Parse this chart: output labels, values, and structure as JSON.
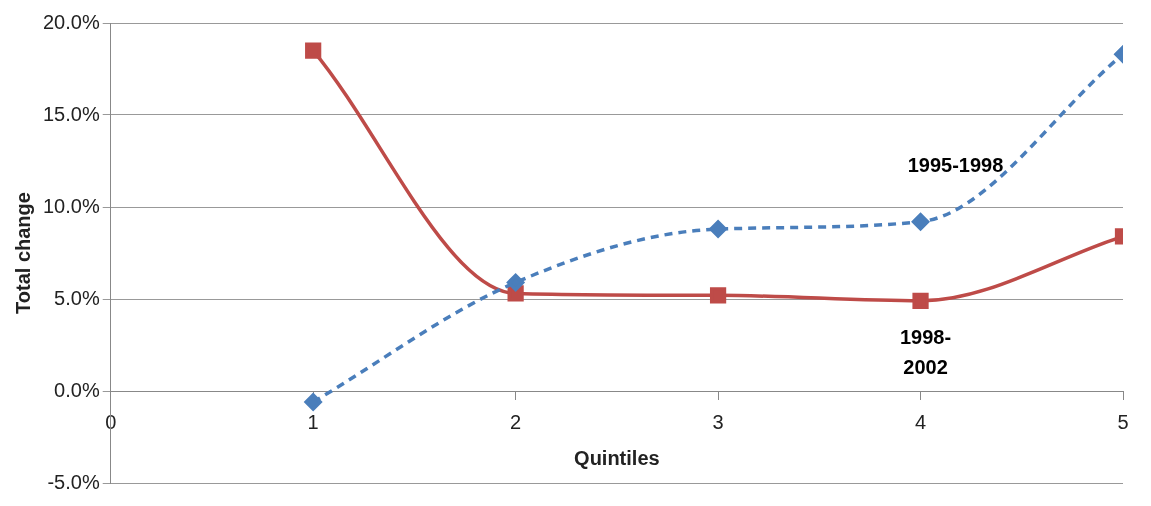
{
  "chart_data": {
    "type": "line",
    "xlabel": "Quintiles",
    "ylabel": "Total change",
    "x": [
      1,
      2,
      3,
      4,
      5
    ],
    "xlim": [
      0,
      5
    ],
    "xticks": [
      0,
      1,
      2,
      3,
      4,
      5
    ],
    "ylim": [
      -5,
      20
    ],
    "yticks": [
      {
        "value": -5,
        "label": "-5.0%"
      },
      {
        "value": 0,
        "label": "0.0%"
      },
      {
        "value": 5,
        "label": "5.0%"
      },
      {
        "value": 10,
        "label": "10.0%"
      },
      {
        "value": 15,
        "label": "15.0%"
      },
      {
        "value": 20,
        "label": "20.0%"
      }
    ],
    "grid": "y",
    "legend": false,
    "series": [
      {
        "name": "1995-1998",
        "color": "#4a7ebb",
        "marker": "diamond",
        "line_style": "dashed",
        "values": [
          -0.6,
          5.9,
          8.8,
          9.2,
          18.3
        ]
      },
      {
        "name": "1998-2002",
        "color": "#be4b48",
        "marker": "square",
        "line_style": "solid",
        "values": [
          18.5,
          5.3,
          5.2,
          4.9,
          8.4
        ]
      }
    ]
  }
}
